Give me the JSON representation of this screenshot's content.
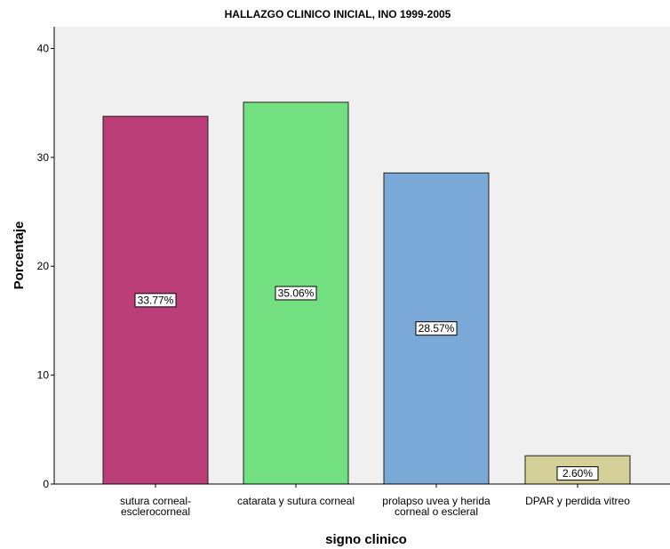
{
  "chart_data": {
    "type": "bar",
    "title": "HALLAZGO CLINICO INICIAL, INO 1999-2005",
    "xlabel": "signo clinico",
    "ylabel": "Porcentaje",
    "ylim": [
      0,
      42
    ],
    "yticks": [
      "0",
      "10",
      "20",
      "30",
      "40"
    ],
    "grid": false,
    "categories": [
      [
        "sutura corneal-",
        "esclerocorneal"
      ],
      [
        "catarata y  sutura corneal"
      ],
      [
        "prolapso uvea y herida",
        "corneal o escleral"
      ],
      [
        "DPAR y perdida vitreo"
      ]
    ],
    "values": [
      33.77,
      35.06,
      28.57,
      2.6
    ],
    "data_labels": [
      "33.77%",
      "35.06%",
      "28.57%",
      "2.60%"
    ],
    "colors": [
      "#bc3e78",
      "#72df80",
      "#7aa9d8",
      "#d5cf98"
    ]
  }
}
